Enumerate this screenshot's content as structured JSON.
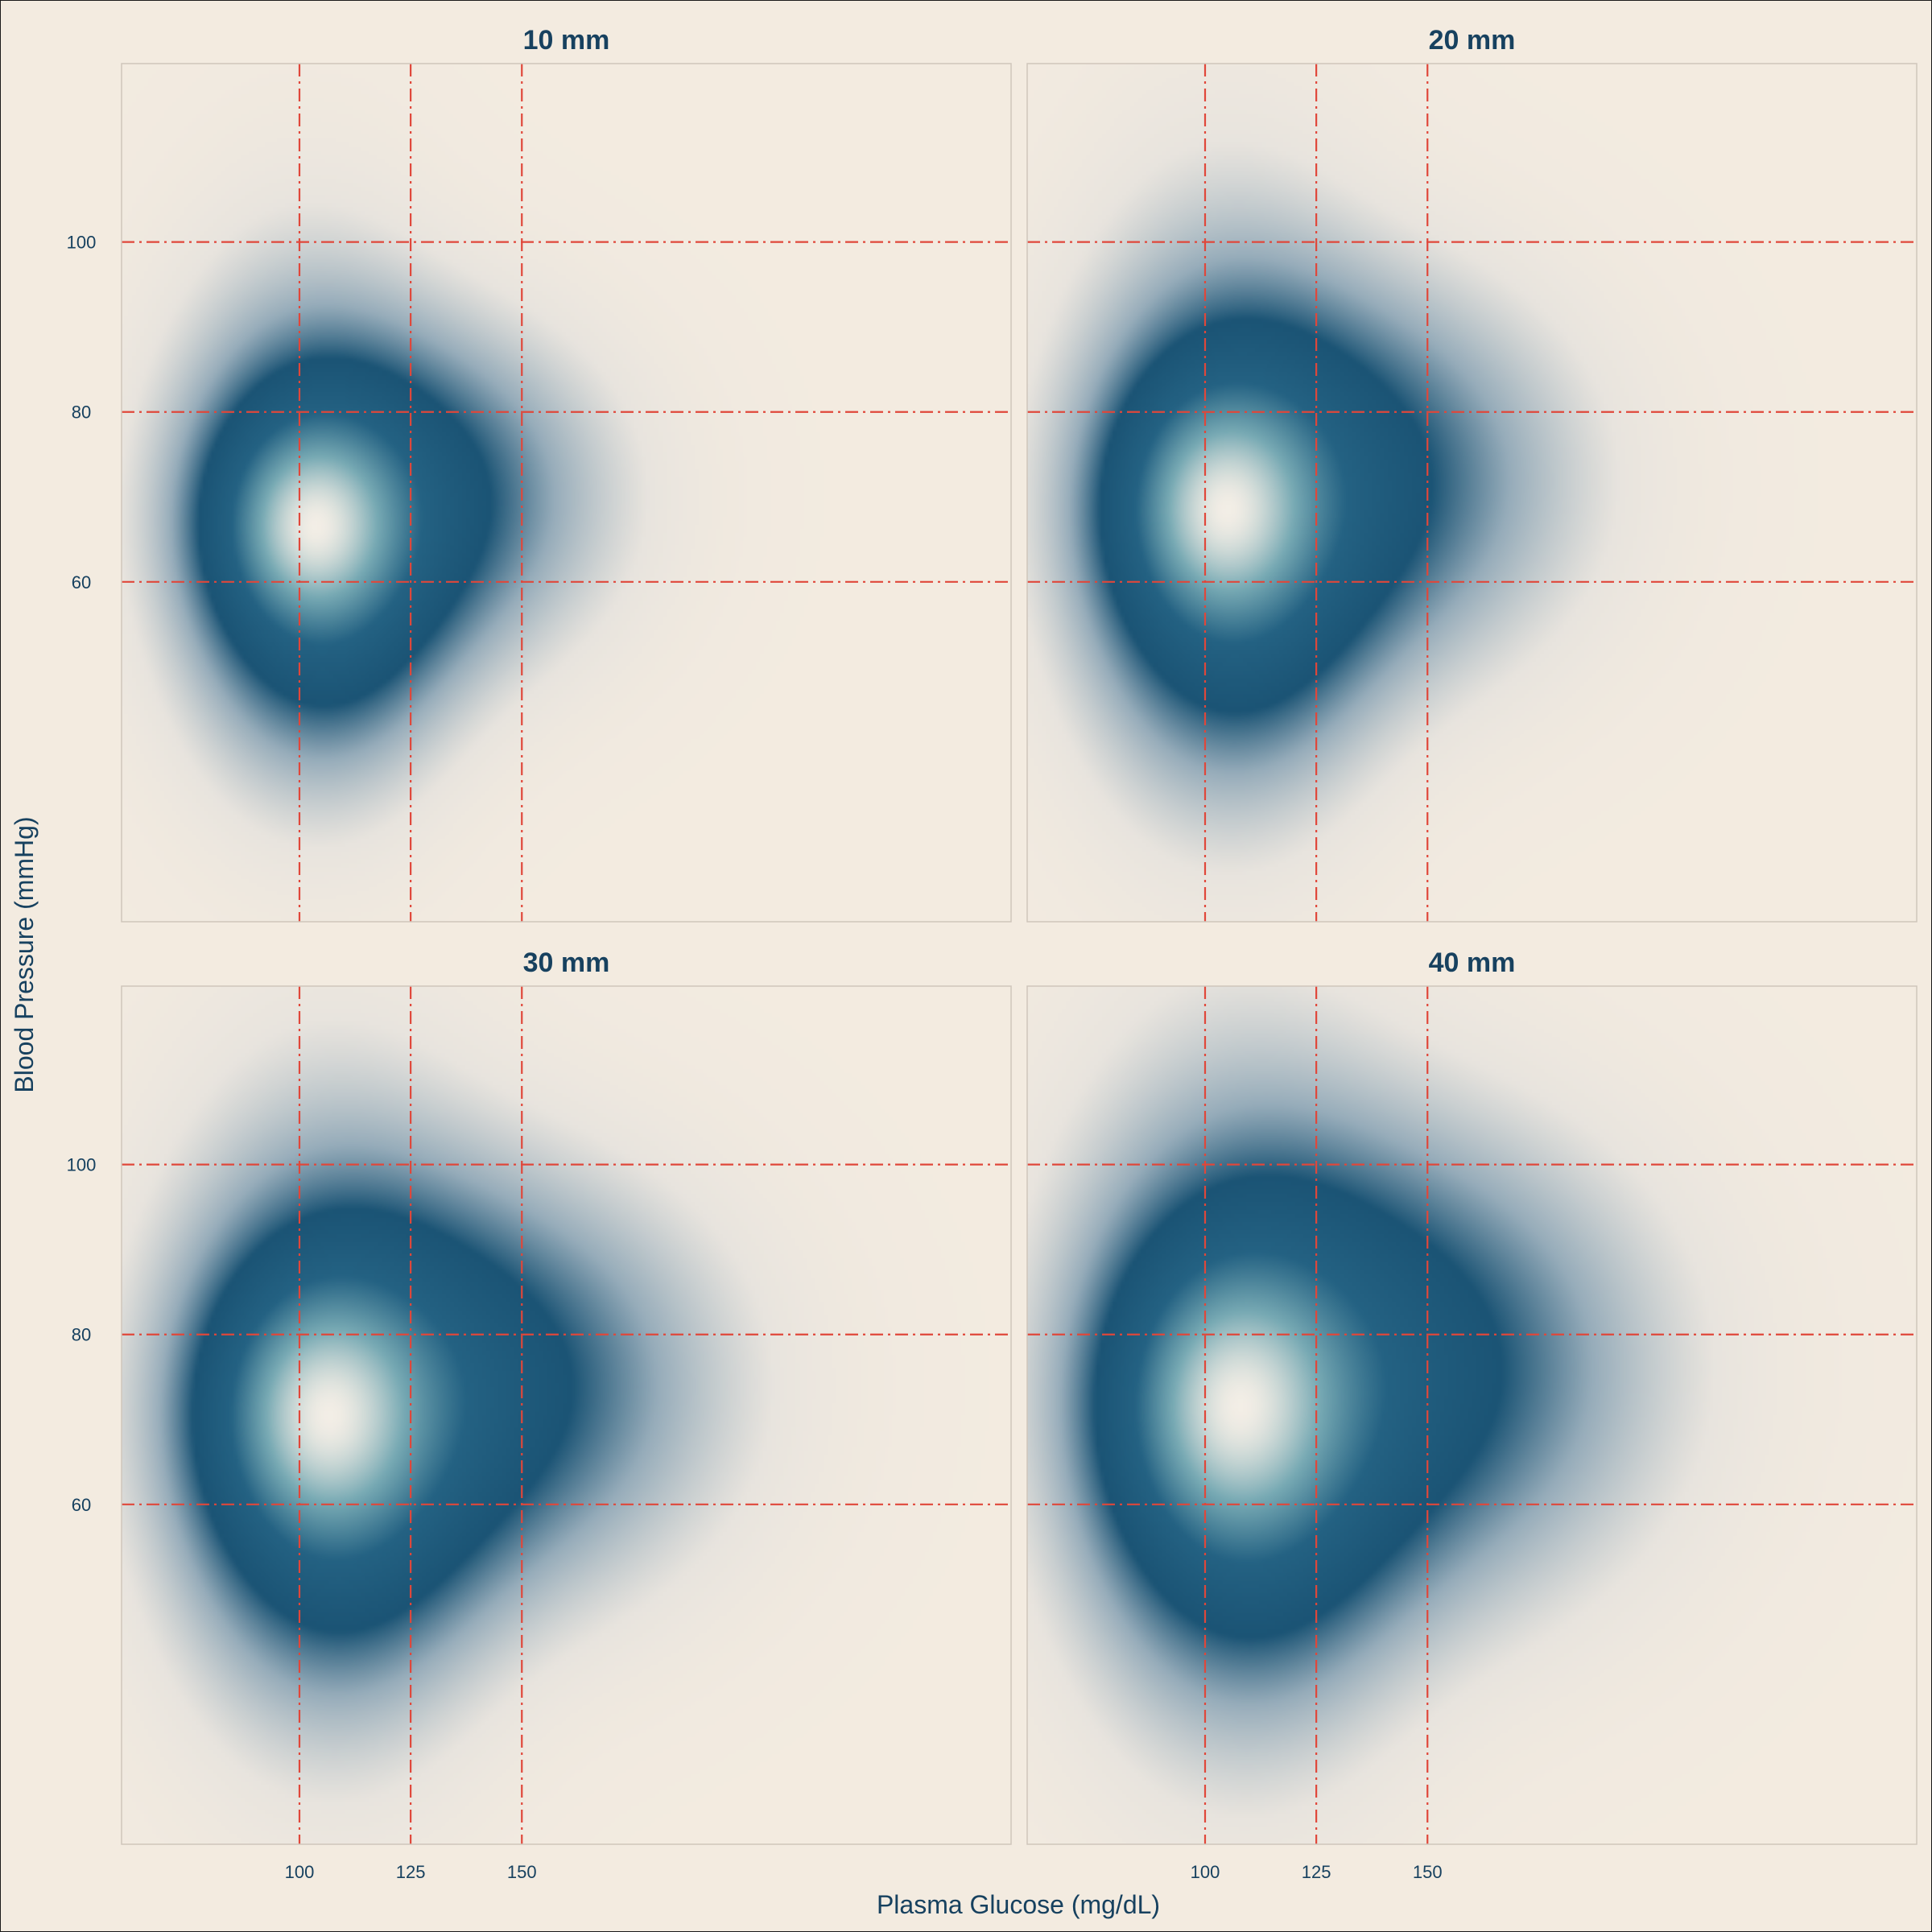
{
  "chart_data": {
    "type": "heatmap",
    "subtype": "2d-density-facets",
    "xlabel": "Plasma Glucose (mg/dL)",
    "ylabel": "Blood Pressure (mmHg)",
    "xlim": [
      60,
      260
    ],
    "ylim": [
      20,
      121
    ],
    "x_ticks": [
      100,
      125,
      150
    ],
    "y_ticks": [
      60,
      80,
      100
    ],
    "reference_lines": {
      "x": [
        100,
        125,
        150
      ],
      "y": [
        60,
        80,
        100
      ]
    },
    "colors": {
      "background": "#f3ebe0",
      "density_mid": "#1b5475",
      "density_peak": "#f3eee6",
      "reference_line": "#e0473a",
      "text": "#17415f"
    },
    "grid": false,
    "panels": [
      {
        "title": "10 mm",
        "density_peak": {
          "x": 101,
          "y": 67
        },
        "components": [
          {
            "x": 101,
            "y": 67,
            "sx": 13,
            "sy": 8,
            "w": 1.0
          },
          {
            "x": 106,
            "y": 58,
            "sx": 18,
            "sy": 14,
            "w": 0.6
          },
          {
            "x": 125,
            "y": 70,
            "sx": 28,
            "sy": 13,
            "w": 0.8
          },
          {
            "x": 101,
            "y": 70,
            "sx": 20,
            "sy": 20,
            "w": 0.5
          }
        ]
      },
      {
        "title": "20 mm",
        "density_peak": {
          "x": 102,
          "y": 69
        },
        "components": [
          {
            "x": 102,
            "y": 69,
            "sx": 14,
            "sy": 9,
            "w": 1.0
          },
          {
            "x": 106,
            "y": 60,
            "sx": 20,
            "sy": 16,
            "w": 0.6
          },
          {
            "x": 132,
            "y": 72,
            "sx": 32,
            "sy": 15,
            "w": 0.8
          },
          {
            "x": 104,
            "y": 72,
            "sx": 22,
            "sy": 23,
            "w": 0.5
          }
        ]
      },
      {
        "title": "30 mm",
        "density_peak": {
          "x": 103,
          "y": 71
        },
        "components": [
          {
            "x": 103,
            "y": 71,
            "sx": 15,
            "sy": 10,
            "w": 1.0
          },
          {
            "x": 108,
            "y": 62,
            "sx": 21,
            "sy": 17,
            "w": 0.6
          },
          {
            "x": 138,
            "y": 74,
            "sx": 35,
            "sy": 16,
            "w": 0.9
          },
          {
            "x": 106,
            "y": 74,
            "sx": 24,
            "sy": 25,
            "w": 0.5
          }
        ]
      },
      {
        "title": "40 mm",
        "density_peak": {
          "x": 104,
          "y": 72
        },
        "components": [
          {
            "x": 104,
            "y": 72,
            "sx": 16,
            "sy": 11,
            "w": 1.0
          },
          {
            "x": 109,
            "y": 63,
            "sx": 22,
            "sy": 18,
            "w": 0.6
          },
          {
            "x": 142,
            "y": 76,
            "sx": 37,
            "sy": 18,
            "w": 0.9
          },
          {
            "x": 107,
            "y": 76,
            "sx": 26,
            "sy": 27,
            "w": 0.5
          }
        ]
      }
    ]
  }
}
